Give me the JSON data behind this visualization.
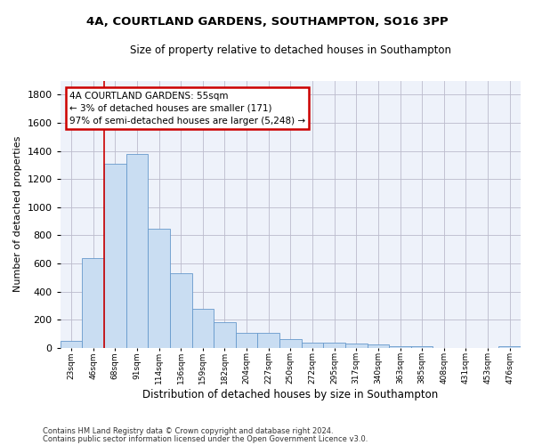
{
  "title1": "4A, COURTLAND GARDENS, SOUTHAMPTON, SO16 3PP",
  "title2": "Size of property relative to detached houses in Southampton",
  "xlabel": "Distribution of detached houses by size in Southampton",
  "ylabel": "Number of detached properties",
  "categories": [
    "23sqm",
    "46sqm",
    "68sqm",
    "91sqm",
    "114sqm",
    "136sqm",
    "159sqm",
    "182sqm",
    "204sqm",
    "227sqm",
    "250sqm",
    "272sqm",
    "295sqm",
    "317sqm",
    "340sqm",
    "363sqm",
    "385sqm",
    "408sqm",
    "431sqm",
    "453sqm",
    "476sqm"
  ],
  "values": [
    50,
    640,
    1310,
    1380,
    850,
    530,
    275,
    185,
    105,
    105,
    65,
    40,
    40,
    30,
    25,
    15,
    15,
    0,
    0,
    0,
    15
  ],
  "bar_color": "#c9ddf2",
  "bar_edge_color": "#6699cc",
  "grid_color": "#bbbbcc",
  "background_color": "#eef2fa",
  "vline_x_index": 1.5,
  "vline_color": "#cc0000",
  "ylim": [
    0,
    1900
  ],
  "yticks": [
    0,
    200,
    400,
    600,
    800,
    1000,
    1200,
    1400,
    1600,
    1800
  ],
  "annotation_text": "4A COURTLAND GARDENS: 55sqm\n← 3% of detached houses are smaller (171)\n97% of semi-detached houses are larger (5,248) →",
  "annotation_box_color": "#cc0000",
  "footer1": "Contains HM Land Registry data © Crown copyright and database right 2024.",
  "footer2": "Contains public sector information licensed under the Open Government Licence v3.0."
}
